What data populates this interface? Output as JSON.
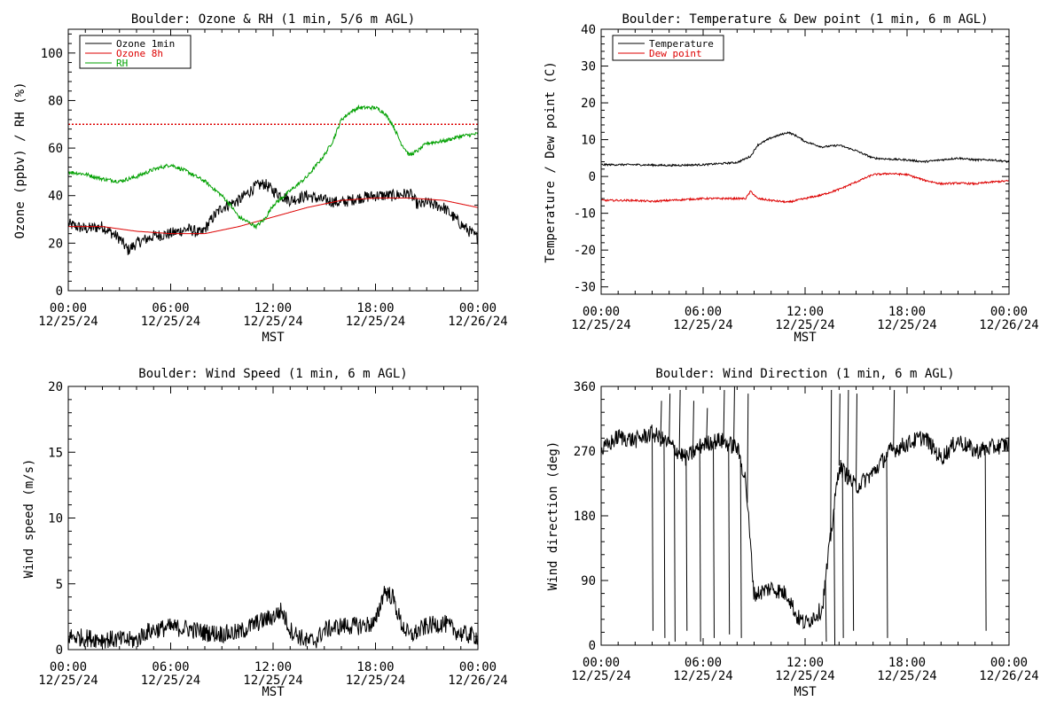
{
  "colors": {
    "black": "#000000",
    "red": "#dd0000",
    "green": "#00a000",
    "background": "#ffffff"
  },
  "panels": {
    "ozone_rh": {
      "title": "Boulder: Ozone & RH (1 min, 5/6 m AGL)",
      "ylabel": "Ozone (ppbv) / RH (%)",
      "xlabel": "MST",
      "legend": [
        "Ozone 1min",
        "Ozone 8h",
        "RH"
      ]
    },
    "temp_dew": {
      "title": "Boulder: Temperature & Dew point (1 min, 6 m AGL)",
      "ylabel": "Temperature / Dew point (C)",
      "xlabel": "MST",
      "legend": [
        "Temperature",
        "Dew point"
      ]
    },
    "wind_speed": {
      "title": "Boulder: Wind Speed (1 min, 6 m AGL)",
      "ylabel": "Wind speed (m/s)",
      "xlabel": "MST"
    },
    "wind_dir": {
      "title": "Boulder: Wind Direction (1 min, 6 m AGL)",
      "ylabel": "Wind direction (deg)",
      "xlabel": "MST"
    }
  },
  "chart_data": [
    {
      "type": "line",
      "title": "Boulder: Ozone & RH (1 min, 5/6 m AGL)",
      "xlabel": "MST",
      "ylabel": "Ozone (ppbv) / RH (%)",
      "x_unit": "hours",
      "xlim": [
        0,
        24
      ],
      "ylim": [
        0,
        110
      ],
      "yticks": [
        0,
        20,
        40,
        60,
        80,
        100
      ],
      "x_tick_labels": [
        [
          "00:00",
          "12/25/24"
        ],
        [
          "06:00",
          "12/25/24"
        ],
        [
          "12:00",
          "12/25/24"
        ],
        [
          "18:00",
          "12/25/24"
        ],
        [
          "00:00",
          "12/26/24"
        ]
      ],
      "legend_position": "top-left",
      "reference_line": {
        "y": 70,
        "style": "dotted",
        "color": "#dd0000"
      },
      "series": [
        {
          "name": "Ozone 1min",
          "color": "#000000",
          "noise": 2.5,
          "points": [
            [
              0,
              28
            ],
            [
              1,
              26
            ],
            [
              2,
              27
            ],
            [
              3,
              22
            ],
            [
              3.5,
              17
            ],
            [
              4,
              20
            ],
            [
              5,
              23
            ],
            [
              6,
              24
            ],
            [
              7,
              26
            ],
            [
              7.8,
              24
            ],
            [
              8.5,
              31
            ],
            [
              9,
              35
            ],
            [
              10,
              38
            ],
            [
              11,
              44
            ],
            [
              11.5,
              45
            ],
            [
              12,
              42
            ],
            [
              13,
              38
            ],
            [
              14,
              40
            ],
            [
              15,
              38
            ],
            [
              16,
              37
            ],
            [
              17,
              39
            ],
            [
              18,
              40
            ],
            [
              19,
              40
            ],
            [
              20,
              41
            ],
            [
              20.5,
              36
            ],
            [
              21,
              37
            ],
            [
              22,
              35
            ],
            [
              23,
              28
            ],
            [
              24,
              22
            ]
          ]
        },
        {
          "name": "Ozone 8h",
          "color": "#dd0000",
          "noise": 0,
          "points": [
            [
              0,
              27
            ],
            [
              2,
              27
            ],
            [
              4,
              25
            ],
            [
              6,
              24
            ],
            [
              8,
              24
            ],
            [
              10,
              27
            ],
            [
              12,
              31
            ],
            [
              14,
              35
            ],
            [
              16,
              38
            ],
            [
              18,
              39
            ],
            [
              20,
              39
            ],
            [
              22,
              38
            ],
            [
              24,
              35
            ]
          ]
        },
        {
          "name": "RH",
          "color": "#00a000",
          "noise": 0.8,
          "points": [
            [
              0,
              50
            ],
            [
              1,
              49
            ],
            [
              2,
              47
            ],
            [
              3,
              46
            ],
            [
              4,
              48
            ],
            [
              5,
              51
            ],
            [
              6,
              53
            ],
            [
              7,
              50
            ],
            [
              8,
              46
            ],
            [
              9,
              40
            ],
            [
              9.5,
              36
            ],
            [
              10,
              31
            ],
            [
              11,
              27
            ],
            [
              11.5,
              30
            ],
            [
              12,
              36
            ],
            [
              13,
              42
            ],
            [
              14,
              48
            ],
            [
              15,
              57
            ],
            [
              15.5,
              63
            ],
            [
              16,
              72
            ],
            [
              16.5,
              75
            ],
            [
              17,
              77
            ],
            [
              18,
              77
            ],
            [
              18.5,
              75
            ],
            [
              19,
              70
            ],
            [
              19.5,
              62
            ],
            [
              20,
              57
            ],
            [
              20.5,
              59
            ],
            [
              21,
              62
            ],
            [
              22,
              63
            ],
            [
              23,
              65
            ],
            [
              24,
              66
            ]
          ]
        }
      ]
    },
    {
      "type": "line",
      "title": "Boulder: Temperature & Dew point (1 min, 6 m AGL)",
      "xlabel": "MST",
      "ylabel": "Temperature / Dew point (C)",
      "x_unit": "hours",
      "xlim": [
        0,
        24
      ],
      "ylim": [
        -32,
        40
      ],
      "yticks": [
        -30,
        -20,
        -10,
        0,
        10,
        20,
        30,
        40
      ],
      "x_tick_labels": [
        [
          "00:00",
          "12/25/24"
        ],
        [
          "06:00",
          "12/25/24"
        ],
        [
          "12:00",
          "12/25/24"
        ],
        [
          "18:00",
          "12/25/24"
        ],
        [
          "00:00",
          "12/26/24"
        ]
      ],
      "legend_position": "top-left",
      "series": [
        {
          "name": "Temperature",
          "color": "#000000",
          "noise": 0.25,
          "points": [
            [
              0,
              3.2
            ],
            [
              2,
              3.2
            ],
            [
              4,
              3
            ],
            [
              6,
              3.2
            ],
            [
              8,
              3.8
            ],
            [
              8.8,
              5.5
            ],
            [
              9.2,
              8.5
            ],
            [
              10,
              10.5
            ],
            [
              11,
              12
            ],
            [
              11.5,
              11
            ],
            [
              12,
              9.5
            ],
            [
              13,
              8
            ],
            [
              14,
              8.5
            ],
            [
              15,
              7
            ],
            [
              16,
              5
            ],
            [
              17,
              4.7
            ],
            [
              18,
              4.5
            ],
            [
              19,
              4
            ],
            [
              20,
              4.5
            ],
            [
              21,
              5
            ],
            [
              22,
              4.5
            ],
            [
              23,
              4.5
            ],
            [
              24,
              4
            ]
          ]
        },
        {
          "name": "Dew point",
          "color": "#dd0000",
          "noise": 0.25,
          "points": [
            [
              0,
              -6.5
            ],
            [
              2,
              -6.5
            ],
            [
              3,
              -6.8
            ],
            [
              4,
              -6.5
            ],
            [
              6,
              -6
            ],
            [
              8,
              -6
            ],
            [
              8.5,
              -6
            ],
            [
              8.8,
              -4
            ],
            [
              9.2,
              -6
            ],
            [
              10,
              -6.5
            ],
            [
              11,
              -7
            ],
            [
              12,
              -6
            ],
            [
              13,
              -5
            ],
            [
              14,
              -3.5
            ],
            [
              15,
              -1.5
            ],
            [
              16,
              0.5
            ],
            [
              17,
              0.8
            ],
            [
              18,
              0.5
            ],
            [
              19,
              -1
            ],
            [
              20,
              -2
            ],
            [
              21,
              -1.8
            ],
            [
              22,
              -2
            ],
            [
              23,
              -1.5
            ],
            [
              24,
              -1.2
            ]
          ]
        }
      ]
    },
    {
      "type": "line",
      "title": "Boulder: Wind Speed (1 min, 6 m AGL)",
      "xlabel": "MST",
      "ylabel": "Wind speed (m/s)",
      "x_unit": "hours",
      "xlim": [
        0,
        24
      ],
      "ylim": [
        0,
        20
      ],
      "yticks": [
        0,
        5,
        10,
        15,
        20
      ],
      "x_tick_labels": [
        [
          "00:00",
          "12/25/24"
        ],
        [
          "06:00",
          "12/25/24"
        ],
        [
          "12:00",
          "12/25/24"
        ],
        [
          "18:00",
          "12/25/24"
        ],
        [
          "00:00",
          "12/26/24"
        ]
      ],
      "series": [
        {
          "name": "",
          "color": "#000000",
          "noise": 0.7,
          "points": [
            [
              0,
              1
            ],
            [
              2,
              0.8
            ],
            [
              4,
              0.7
            ],
            [
              4.5,
              1.3
            ],
            [
              5,
              1.5
            ],
            [
              6,
              1.7
            ],
            [
              7,
              1.6
            ],
            [
              8,
              1.3
            ],
            [
              9,
              1.2
            ],
            [
              10,
              1.3
            ],
            [
              11,
              2
            ],
            [
              12,
              2.5
            ],
            [
              12.5,
              3
            ],
            [
              13,
              1.5
            ],
            [
              14,
              0.6
            ],
            [
              14.5,
              0.7
            ],
            [
              15,
              1.5
            ],
            [
              16,
              1.8
            ],
            [
              17,
              1.8
            ],
            [
              18,
              2
            ],
            [
              18.5,
              4.5
            ],
            [
              19,
              4
            ],
            [
              19.5,
              2
            ],
            [
              20,
              1
            ],
            [
              21,
              1.8
            ],
            [
              22,
              2
            ],
            [
              23,
              1.2
            ],
            [
              24,
              1
            ]
          ]
        }
      ]
    },
    {
      "type": "line",
      "title": "Boulder: Wind Direction (1 min, 6 m AGL)",
      "xlabel": "MST",
      "ylabel": "Wind direction (deg)",
      "x_unit": "hours",
      "xlim": [
        0,
        24
      ],
      "ylim": [
        0,
        360
      ],
      "yticks": [
        0,
        90,
        180,
        270,
        360
      ],
      "x_tick_labels": [
        [
          "00:00",
          "12/25/24"
        ],
        [
          "06:00",
          "12/25/24"
        ],
        [
          "12:00",
          "12/25/24"
        ],
        [
          "18:00",
          "12/25/24"
        ],
        [
          "00:00",
          "12/26/24"
        ]
      ],
      "series": [
        {
          "name": "",
          "color": "#000000",
          "noise": 12,
          "points": [
            [
              0,
              270
            ],
            [
              1,
              290
            ],
            [
              2,
              285
            ],
            [
              3,
              295
            ],
            [
              4,
              280
            ],
            [
              5,
              260
            ],
            [
              6,
              280
            ],
            [
              7,
              285
            ],
            [
              8,
              275
            ],
            [
              8.5,
              230
            ],
            [
              9,
              70
            ],
            [
              10,
              80
            ],
            [
              11,
              70
            ],
            [
              11.5,
              40
            ],
            [
              12,
              30
            ],
            [
              13,
              50
            ],
            [
              14,
              250
            ],
            [
              15,
              220
            ],
            [
              16,
              240
            ],
            [
              16.5,
              255
            ],
            [
              17,
              270
            ],
            [
              18,
              280
            ],
            [
              19,
              290
            ],
            [
              20,
              260
            ],
            [
              21,
              285
            ],
            [
              22,
              270
            ],
            [
              23,
              275
            ],
            [
              24,
              280
            ]
          ],
          "spikes": [
            [
              3,
              20
            ],
            [
              3.5,
              340
            ],
            [
              3.7,
              10
            ],
            [
              4,
              350
            ],
            [
              4.3,
              5
            ],
            [
              4.6,
              355
            ],
            [
              5,
              20
            ],
            [
              5.4,
              340
            ],
            [
              5.8,
              5
            ],
            [
              6.2,
              330
            ],
            [
              6.6,
              10
            ],
            [
              7.2,
              355
            ],
            [
              7.5,
              15
            ],
            [
              7.8,
              360
            ],
            [
              8.2,
              10
            ],
            [
              8.6,
              350
            ],
            [
              13.2,
              5
            ],
            [
              13.5,
              355
            ],
            [
              13.7,
              0
            ],
            [
              14,
              350
            ],
            [
              14.2,
              10
            ],
            [
              14.5,
              355
            ],
            [
              14.8,
              20
            ],
            [
              15,
              350
            ],
            [
              16.8,
              10
            ],
            [
              17.2,
              355
            ],
            [
              22.6,
              20
            ]
          ]
        }
      ]
    }
  ]
}
